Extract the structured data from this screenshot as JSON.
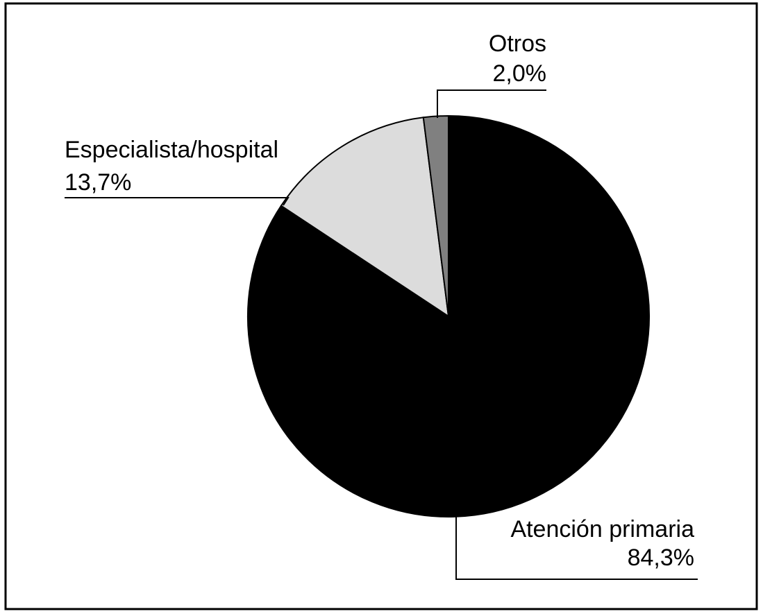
{
  "chart_data": {
    "type": "pie",
    "categories": [
      "Atención primaria",
      "Especialista/hospital",
      "Otros"
    ],
    "values": [
      84.3,
      13.7,
      2.0
    ],
    "value_labels": [
      "84,3%",
      "13,7%",
      "2,0%"
    ],
    "colors": [
      "#000000",
      "#dcdcdc",
      "#808080"
    ]
  }
}
